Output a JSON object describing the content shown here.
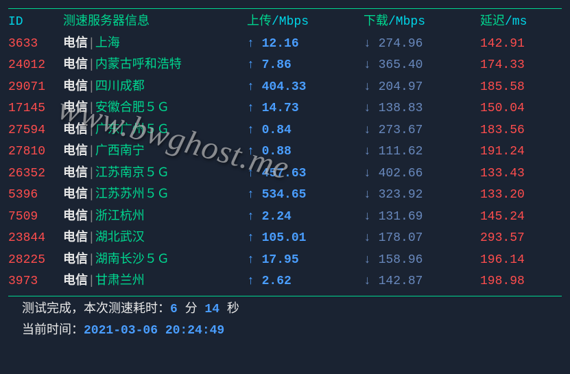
{
  "headers": {
    "id": "ID",
    "server": "测速服务器信息",
    "upload_label": "上传",
    "upload_unit": "/Mbps",
    "download_label": "下载",
    "download_unit": "/Mbps",
    "latency_label": "延迟",
    "latency_unit": "/ms"
  },
  "rows": [
    {
      "id": "3633",
      "carrier": "电信",
      "sep": "|",
      "location": "上海",
      "up": "12.16",
      "down": "274.96",
      "latency": "142.91"
    },
    {
      "id": "24012",
      "carrier": "电信",
      "sep": "|",
      "location": "内蒙古呼和浩特",
      "up": "7.86",
      "down": "365.40",
      "latency": "174.33"
    },
    {
      "id": "29071",
      "carrier": "电信",
      "sep": "|",
      "location": "四川成都",
      "up": "404.33",
      "down": "204.97",
      "latency": "185.58"
    },
    {
      "id": "17145",
      "carrier": "电信",
      "sep": "|",
      "location": "安徽合肥５Ｇ",
      "up": "14.73",
      "down": "138.83",
      "latency": "150.04"
    },
    {
      "id": "27594",
      "carrier": "电信",
      "sep": "|",
      "location": "广东广州５Ｇ",
      "up": "0.84",
      "down": "273.67",
      "latency": "183.56"
    },
    {
      "id": "27810",
      "carrier": "电信",
      "sep": "|",
      "location": "广西南宁",
      "up": "0.88",
      "down": "111.62",
      "latency": "191.24"
    },
    {
      "id": "26352",
      "carrier": "电信",
      "sep": "|",
      "location": "江苏南京５Ｇ",
      "up": "457.63",
      "down": "402.66",
      "latency": "133.43"
    },
    {
      "id": "5396",
      "carrier": "电信",
      "sep": "|",
      "location": "江苏苏州５Ｇ",
      "up": "534.65",
      "down": "323.92",
      "latency": "133.20"
    },
    {
      "id": "7509",
      "carrier": "电信",
      "sep": "|",
      "location": "浙江杭州",
      "up": "2.24",
      "down": "131.69",
      "latency": "145.24"
    },
    {
      "id": "23844",
      "carrier": "电信",
      "sep": "|",
      "location": "湖北武汉",
      "up": "105.01",
      "down": "178.07",
      "latency": "293.57"
    },
    {
      "id": "28225",
      "carrier": "电信",
      "sep": "|",
      "location": "湖南长沙５Ｇ",
      "up": "17.95",
      "down": "158.96",
      "latency": "196.14"
    },
    {
      "id": "3973",
      "carrier": "电信",
      "sep": "|",
      "location": "甘肃兰州",
      "up": "2.62",
      "down": "142.87",
      "latency": "198.98"
    }
  ],
  "arrows": {
    "up": "↑",
    "down": "↓"
  },
  "footer": {
    "done_label": "测试完成",
    "comma": "，",
    "duration_label": "本次测速耗时：",
    "minutes_val": "6",
    "minutes_unit": " 分 ",
    "seconds_val": "14",
    "seconds_unit": " 秒",
    "time_label": "当前时间：",
    "timestamp": "2021-03-06 20:24:49"
  },
  "watermark": "www.bwghost.me"
}
